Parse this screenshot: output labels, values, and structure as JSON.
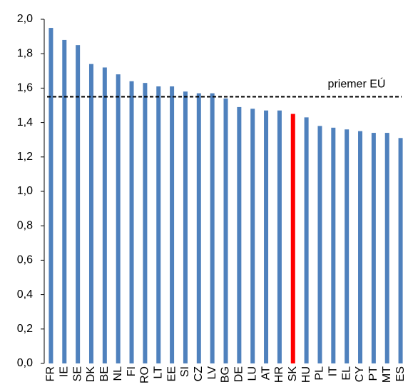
{
  "chart_data": {
    "type": "bar",
    "categories": [
      "FR",
      "IE",
      "SE",
      "DK",
      "BE",
      "NL",
      "FI",
      "RO",
      "LT",
      "EE",
      "SI",
      "CZ",
      "LV",
      "BG",
      "DE",
      "LU",
      "AT",
      "HR",
      "SK",
      "HU",
      "PL",
      "IT",
      "EL",
      "CY",
      "PT",
      "MT",
      "ES"
    ],
    "values": [
      1.95,
      1.88,
      1.85,
      1.74,
      1.72,
      1.68,
      1.64,
      1.63,
      1.61,
      1.61,
      1.58,
      1.57,
      1.57,
      1.54,
      1.49,
      1.48,
      1.47,
      1.47,
      1.45,
      1.43,
      1.38,
      1.37,
      1.36,
      1.35,
      1.34,
      1.34,
      1.31
    ],
    "colors": [
      "#4f81bd",
      "#4f81bd",
      "#4f81bd",
      "#4f81bd",
      "#4f81bd",
      "#4f81bd",
      "#4f81bd",
      "#4f81bd",
      "#4f81bd",
      "#4f81bd",
      "#4f81bd",
      "#4f81bd",
      "#4f81bd",
      "#4f81bd",
      "#4f81bd",
      "#4f81bd",
      "#4f81bd",
      "#4f81bd",
      "#ff0000",
      "#4f81bd",
      "#4f81bd",
      "#4f81bd",
      "#4f81bd",
      "#4f81bd",
      "#4f81bd",
      "#4f81bd",
      "#4f81bd"
    ],
    "ylim": [
      0,
      2
    ],
    "yticks": [
      {
        "value": 0,
        "label": "0,0"
      },
      {
        "value": 0.2,
        "label": "0,2"
      },
      {
        "value": 0.4,
        "label": "0,4"
      },
      {
        "value": 0.6,
        "label": "0,6"
      },
      {
        "value": 0.8,
        "label": "0,8"
      },
      {
        "value": 1,
        "label": "1,0"
      },
      {
        "value": 1.2,
        "label": "1,2"
      },
      {
        "value": 1.4,
        "label": "1,4"
      },
      {
        "value": 1.6,
        "label": "1,6"
      },
      {
        "value": 1.8,
        "label": "1,8"
      },
      {
        "value": 2,
        "label": "2,0"
      }
    ],
    "reference_line": {
      "value": 1.55,
      "label": "priemer EÚ",
      "color": "#000000"
    },
    "grid": false
  }
}
